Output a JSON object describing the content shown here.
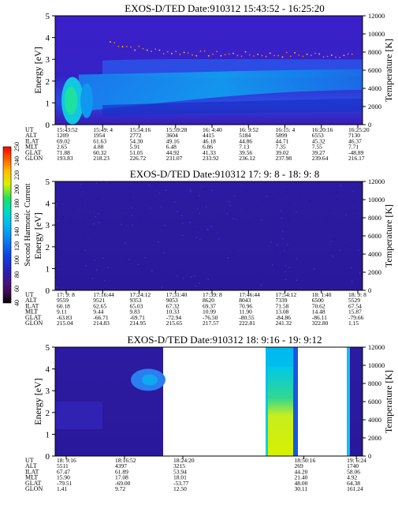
{
  "chart_data": [
    {
      "type": "heatmap",
      "title": "EXOS-D/TED",
      "date_label": "Date:910312",
      "time_range": "15:43:52 - 16:25:20",
      "ylabel_left": "Energy [eV]",
      "ylabel_right": "Temperature [K]",
      "left_ticks": [
        "0",
        "1",
        "2",
        "3",
        "4",
        "5"
      ],
      "right_ticks": [
        "0",
        "2000",
        "4000",
        "6000",
        "8000",
        "10000",
        "12000"
      ],
      "ylim_left": [
        0,
        5
      ],
      "ylim_right": [
        0,
        12000
      ],
      "orbit_rows": {
        "labels": [
          "UT",
          "ALT",
          "ILAT",
          "MLT",
          "GLAT",
          "GLON"
        ],
        "columns": [
          [
            "15:43:52",
            "1209",
            "69.02",
            "2.65",
            "71.88",
            "193.83"
          ],
          [
            "15:49: 4",
            "1954",
            "61.63",
            "4.88",
            "60.32",
            "218.23"
          ],
          [
            "15:54:16",
            "2772",
            "54.30",
            "5.91",
            "51.05",
            "226.72"
          ],
          [
            "15:59:28",
            "3604",
            "49.16",
            "6.48",
            "44.92",
            "231.07"
          ],
          [
            "16: 4:40",
            "4415",
            "46.18",
            "6.86",
            "41.33",
            "233.92"
          ],
          [
            "16: 9:52",
            "5184",
            "44.86",
            "7.13",
            "39.56",
            "236.12"
          ],
          [
            "16:15: 4",
            "5899",
            "44.71",
            "7.35",
            "39.02",
            "237.98"
          ],
          [
            "16:20:16",
            "6553",
            "45.32",
            "7.55",
            "39.27",
            "239.64"
          ],
          [
            "16:25:20",
            "7130",
            "46.37",
            "7.71",
            "-48.89",
            "216.17"
          ]
        ]
      }
    },
    {
      "type": "heatmap",
      "title": "EXOS-D/TED",
      "date_label": "Date:910312",
      "time_range": "17: 9: 8 - 18: 9: 8",
      "ylabel_left": "Energy [eV]",
      "ylabel_right": "Temperature [K]",
      "left_ticks": [
        "0",
        "1",
        "2",
        "3",
        "4",
        "5"
      ],
      "right_ticks": [
        "0",
        "2000",
        "4000",
        "6000",
        "8000",
        "10000",
        "12000"
      ],
      "ylim_left": [
        0,
        5
      ],
      "ylim_right": [
        0,
        12000
      ],
      "orbit_rows": {
        "labels": [
          "UT",
          "ALT",
          "ILAT",
          "MLT",
          "GLAT",
          "GLON"
        ],
        "columns": [
          [
            "17: 9: 8",
            "9559",
            "60.18",
            "9.11",
            "-63.83",
            "215.04"
          ],
          [
            "17:16:44",
            "9521",
            "62.65",
            "9.44",
            "-66.71",
            "214.83"
          ],
          [
            "17:24:12",
            "9353",
            "65.03",
            "9.83",
            "-69.71",
            "214.95"
          ],
          [
            "17:31:40",
            "9053",
            "67.32",
            "10.33",
            "-72.94",
            "215.65"
          ],
          [
            "17:39: 8",
            "8620",
            "69.37",
            "10.99",
            "-76.50",
            "217.57"
          ],
          [
            "17:46:44",
            "8043",
            "70.96",
            "11.90",
            "-80.55",
            "222.81"
          ],
          [
            "17:54:12",
            "7339",
            "71.58",
            "13.08",
            "-84.86",
            "241.32"
          ],
          [
            "18: 1:40",
            "6500",
            "70.62",
            "14.48",
            "-86.11",
            "322.80"
          ],
          [
            "18: 9: 8",
            "5529",
            "67.54",
            "15.87",
            "-79.66",
            "1.15"
          ]
        ]
      }
    },
    {
      "type": "heatmap",
      "title": "EXOS-D/TED",
      "date_label": "Date:910312",
      "time_range": "18: 9:16 - 19: 9:12",
      "ylabel_left": "Energy [eV]",
      "ylabel_right": "Temperature [K]",
      "left_ticks": [
        "0",
        "1",
        "2",
        "3",
        "4",
        "5"
      ],
      "right_ticks": [
        "0",
        "2000",
        "4000",
        "6000",
        "8000",
        "10000",
        "12000"
      ],
      "ylim_left": [
        0,
        5
      ],
      "ylim_right": [
        0,
        12000
      ],
      "orbit_rows": {
        "labels": [
          "UT",
          "ALT",
          "ILAT",
          "MLT",
          "GLAT",
          "GLON"
        ],
        "columns": [
          [
            "18: 9:16",
            "5511",
            "67.47",
            "15.90",
            "-79.51",
            "1.41"
          ],
          [
            "18:16:52",
            "4397",
            "61.89",
            "17.08",
            "-69.00",
            "9.72"
          ],
          [
            "18:24:20",
            "3215",
            "53.94",
            "18.01",
            "-53.77",
            "12.50"
          ],
          [
            "18:50:16",
            "269",
            "44.20",
            "21.40",
            "48.00",
            "30.11"
          ],
          [
            "19: 6:24",
            "1740",
            "58.06",
            "4.92",
            "64.38",
            "161.24"
          ]
        ]
      }
    }
  ],
  "colorbar": {
    "label": "Second Harmonic Current",
    "ticks": [
      "40",
      "60",
      "80",
      "100",
      "120",
      "140",
      "160",
      "180",
      "200",
      "220",
      "240",
      "250"
    ],
    "colors": [
      "#000000",
      "#3a0a4a",
      "#4b0f78",
      "#2a1fb0",
      "#1040e0",
      "#0a7ef0",
      "#00b8f0",
      "#00d8c8",
      "#20e060",
      "#d8f000",
      "#ffc000",
      "#ff6000",
      "#ff0000"
    ]
  }
}
